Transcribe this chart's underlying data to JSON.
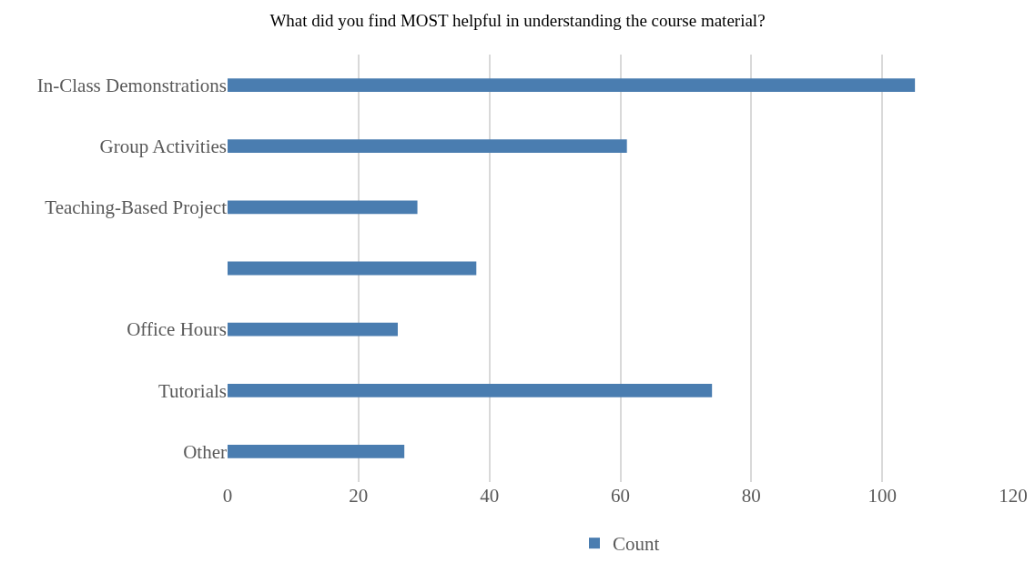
{
  "chart_data": {
    "type": "bar",
    "orientation": "horizontal",
    "title": "What did you find MOST helpful in understanding the course material?",
    "categories": [
      "In-Class Demonstrations",
      "Group Activities",
      "Teaching-Based Project",
      null,
      "Office Hours",
      "Tutorials",
      "Other"
    ],
    "series": [
      {
        "name": "Count",
        "color": "#4a7db0",
        "values": [
          105,
          61,
          29,
          38,
          26,
          74,
          27
        ]
      }
    ],
    "xlim": [
      0,
      120
    ],
    "xticks": [
      0,
      20,
      40,
      60,
      80,
      100,
      120
    ],
    "grid": "x",
    "legend": "bottom"
  }
}
